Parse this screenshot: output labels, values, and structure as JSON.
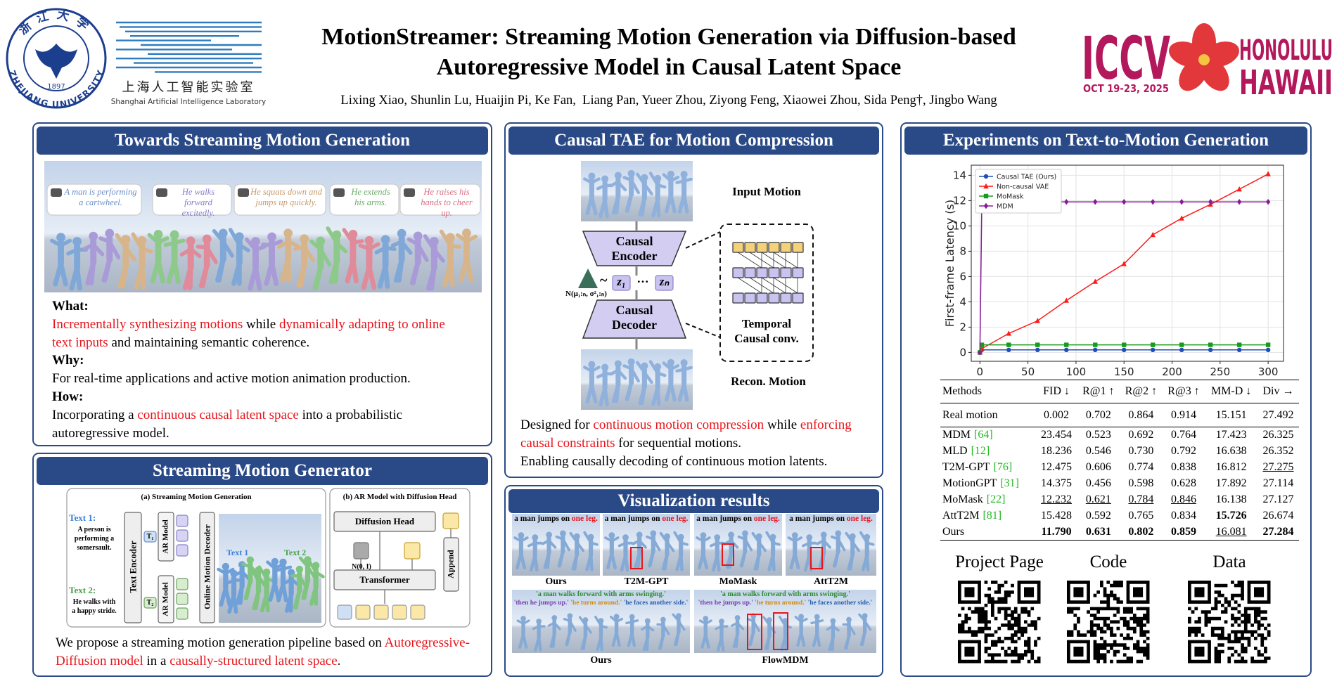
{
  "header": {
    "title_lines": [
      "MotionStreamer: Streaming Motion Generation via Diffusion-based",
      "Autoregressive Model in Causal Latent Space"
    ],
    "authors": "Lixing Xiao, Shunlin Lu, Huaijin Pi, Ke Fan,  Liang Pan, Yueer Zhou, Ziyong Feng, Xiaowei Zhou, Sida Peng†, Jingbo Wang"
  },
  "logos": {
    "zju": {
      "chinese": "浙江大学",
      "year": "1897",
      "name": "ZHEJIANG UNIVERSITY"
    },
    "shlab": {
      "chinese": "上海人工智能实验室",
      "english": "Shanghai Artificial Intelligence Laboratory"
    },
    "iccv": {
      "name": "ICCV",
      "dates": "OCT 19-23, 2025",
      "city": "HONOLULU",
      "state": "HAWAII"
    }
  },
  "towards": {
    "title": "Towards Streaming Motion Generation",
    "bubbles": [
      "A man is performing a cartwheel.",
      "He walks forward excitedly.",
      "He squats down and jumps up quickly.",
      "He extends his arms.",
      "He raises his hands to cheer up."
    ],
    "items": [
      {
        "heading": "What:",
        "segments": [
          {
            "text": "Incrementally synthesizing motions",
            "color": "#e8141b"
          },
          {
            "text": " while "
          },
          {
            "text": "dynamically adapting to online text inputs",
            "color": "#e8141b"
          },
          {
            "text": " and maintaining semantic coherence."
          }
        ]
      },
      {
        "heading": "Why:",
        "segments": [
          {
            "text": "For real-time applications and active motion animation production."
          }
        ]
      },
      {
        "heading": "How:",
        "segments": [
          {
            "text": "Incorporating a "
          },
          {
            "text": "continuous causal latent space",
            "color": "#e8141b"
          },
          {
            "text": " into a probabilistic autoregressive model."
          }
        ]
      }
    ]
  },
  "generator": {
    "title": "Streaming Motion Generator",
    "figure": {
      "title_a": "(a) Streaming Motion Generation",
      "title_b": "(b) AR Model with Diffusion Head",
      "text1_label": "Text 1:",
      "text1": "A person is performing a somersault.",
      "text2_label": "Text 2:",
      "text2": "He walks with a happy stride.",
      "encoder": "Text Encoder",
      "ar_model": [
        "AR Model",
        "AR Model"
      ],
      "tokens": [
        "T₁",
        "T₂"
      ],
      "decoder": "Online Motion Decoder",
      "motion_text1": "Text 1",
      "motion_text2": "Text 2",
      "diffusion_head": "Diffusion Head",
      "transformer": "Transformer",
      "append": "Append",
      "noise": "N(0, I)"
    },
    "caption": [
      {
        "text": "We propose a streaming motion generation pipeline based on "
      },
      {
        "text": "Autoregressive-Diffusion model",
        "color": "#e8141b"
      },
      {
        "text": " in a "
      },
      {
        "text": "causally-structured latent space",
        "color": "#e8141b"
      },
      {
        "text": "."
      }
    ]
  },
  "tae": {
    "title": "Causal TAE for Motion Compression",
    "input": "Input Motion",
    "encoder": "Causal Encoder",
    "decoder": "Causal Decoder",
    "recon": "Recon. Motion",
    "conv": "Temporal Causal conv.",
    "latent": {
      "dist": "N(μ₁:ₙ, σ²₁:ₙ)",
      "tilde": "~",
      "z1": "z₁",
      "dots": "···",
      "zn": "zₙ"
    },
    "paragraphs": [
      [
        {
          "text": "Designed for "
        },
        {
          "text": "continuous motion compression",
          "color": "#e8141b"
        },
        {
          "text": " while "
        },
        {
          "text": "enforcing causal constraints",
          "color": "#e8141b"
        },
        {
          "text": " for sequential motions."
        }
      ],
      [
        {
          "text": "Enabling causally decoding of continuous motion latents."
        }
      ]
    ]
  },
  "visualization": {
    "title": "Visualization results",
    "top": [
      {
        "caption": [
          {
            "text": "a man jumps on "
          },
          {
            "text": "one leg.",
            "color": "#e8141b"
          }
        ],
        "label": "Ours"
      },
      {
        "caption": [
          {
            "text": "a man jumps on "
          },
          {
            "text": "one leg.",
            "color": "#e8141b"
          }
        ],
        "label": "T2M-GPT"
      },
      {
        "caption": [
          {
            "text": "a man jumps on "
          },
          {
            "text": "one leg.",
            "color": "#e8141b"
          }
        ],
        "label": "MoMask"
      },
      {
        "caption": [
          {
            "text": "a man jumps on "
          },
          {
            "text": "one leg.",
            "color": "#e8141b"
          }
        ],
        "label": "AttT2M"
      }
    ],
    "bottom": [
      {
        "line1": "'a man walks forward with arms swinging.'",
        "line2": [
          {
            "text": "'then he jumps up.'",
            "color": "#7b3fb0"
          },
          {
            "text": " "
          },
          {
            "text": "'he turns around.'",
            "color": "#d08a10"
          },
          {
            "text": " "
          },
          {
            "text": "'he faces another side.'",
            "color": "#2b5fb0"
          }
        ],
        "label": "Ours"
      },
      {
        "line1": "'a man walks forward with arms swinging.'",
        "line2": [
          {
            "text": "'then he jumps up.'",
            "color": "#7b3fb0"
          },
          {
            "text": " "
          },
          {
            "text": "'he turns around.'",
            "color": "#d08a10"
          },
          {
            "text": " "
          },
          {
            "text": "'he faces another side.'",
            "color": "#2b5fb0"
          }
        ],
        "label": "FlowMDM"
      }
    ]
  },
  "experiments": {
    "title": "Experiments on Text-to-Motion Generation",
    "table": {
      "header": [
        "Methods",
        "FID ↓",
        "R@1 ↑",
        "R@2 ↑",
        "R@3 ↑",
        "MM-D ↓",
        "Div →"
      ],
      "rows": [
        {
          "method": "Real motion",
          "cells": [
            "0.002",
            "0.702",
            "0.864",
            "0.914",
            "15.151",
            "27.492"
          ]
        },
        {
          "method": "MDM",
          "cite": "[64]",
          "cells": [
            "23.454",
            "0.523",
            "0.692",
            "0.764",
            "17.423",
            "26.325"
          ]
        },
        {
          "method": "MLD",
          "cite": "[12]",
          "cells": [
            "18.236",
            "0.546",
            "0.730",
            "0.792",
            "16.638",
            "26.352"
          ]
        },
        {
          "method": "T2M-GPT",
          "cite": "[76]",
          "cells": [
            "12.475",
            "0.606",
            "0.774",
            "0.838",
            "16.812",
            "27.275"
          ]
        },
        {
          "method": "MotionGPT",
          "cite": "[31]",
          "cells": [
            "14.375",
            "0.456",
            "0.598",
            "0.628",
            "17.892",
            "27.114"
          ]
        },
        {
          "method": "MoMask",
          "cite": "[22]",
          "cells": [
            "12.232",
            "0.621",
            "0.784",
            "0.846",
            "16.138",
            "27.127"
          ]
        },
        {
          "method": "AttT2M",
          "cite": "[81]",
          "cells": [
            "15.428",
            "0.592",
            "0.765",
            "0.834",
            "15.726",
            "26.674"
          ]
        },
        {
          "method": "Ours",
          "cells": [
            "11.790",
            "0.631",
            "0.802",
            "0.859",
            "16.081",
            "27.284"
          ]
        }
      ]
    },
    "links": [
      "Project Page",
      "Code",
      "Data"
    ]
  },
  "chart_data": {
    "type": "line",
    "ylabel": "First-frame Latency (s)",
    "x": [
      0,
      2,
      30,
      60,
      90,
      120,
      150,
      180,
      210,
      240,
      270,
      300
    ],
    "series": [
      {
        "name": "Causal TAE (Ours)",
        "color": "#1f4fb4",
        "marker": "o",
        "values": [
          0,
          0.2,
          0.2,
          0.2,
          0.2,
          0.2,
          0.2,
          0.2,
          0.2,
          0.2,
          0.2,
          0.2
        ]
      },
      {
        "name": "Non-causal VAE",
        "color": "#ff1a1a",
        "marker": "^",
        "values": [
          0,
          0.3,
          1.5,
          2.5,
          4.1,
          5.6,
          7.0,
          9.3,
          10.6,
          11.7,
          12.9,
          14.1
        ]
      },
      {
        "name": "MoMask",
        "color": "#1a9a1a",
        "marker": "s",
        "values": [
          0,
          0.6,
          0.6,
          0.6,
          0.6,
          0.6,
          0.6,
          0.6,
          0.6,
          0.6,
          0.6,
          0.6
        ]
      },
      {
        "name": "MDM",
        "color": "#8a1a9a",
        "marker": "D",
        "values": [
          0,
          11.9,
          11.9,
          11.9,
          11.9,
          11.9,
          11.9,
          11.9,
          11.9,
          11.9,
          11.9,
          11.9
        ]
      }
    ],
    "xlim": [
      -9,
      316
    ],
    "ylim": [
      -0.7,
      14.8
    ],
    "xticks": [
      0,
      50,
      100,
      150,
      200,
      250,
      300
    ],
    "yticks": [
      0,
      2,
      4,
      6,
      8,
      10,
      12,
      14
    ],
    "grid": true,
    "legend": "upper left"
  }
}
